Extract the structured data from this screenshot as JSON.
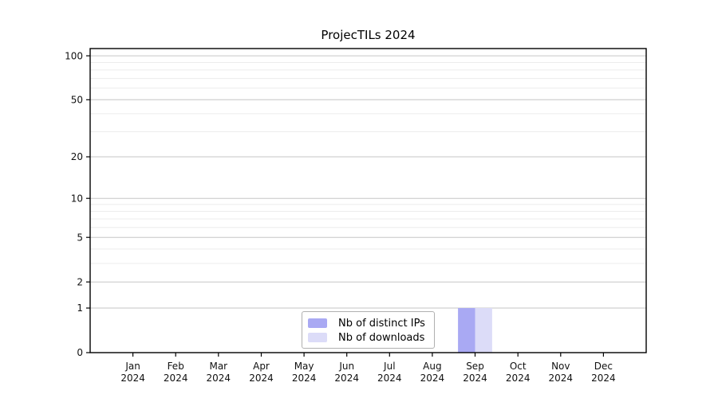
{
  "page": {
    "background": "#ffffff"
  },
  "chart_data": {
    "type": "bar",
    "title": "ProjecTILs 2024",
    "categories": [
      "Jan",
      "Feb",
      "Mar",
      "Apr",
      "May",
      "Jun",
      "Jul",
      "Aug",
      "Sep",
      "Oct",
      "Nov",
      "Dec"
    ],
    "year_label": "2024",
    "series": [
      {
        "name": "Nb of distinct IPs",
        "color": "#a9a9f3",
        "values": [
          0,
          0,
          0,
          0,
          0,
          0,
          0,
          0,
          1,
          0,
          0,
          0
        ]
      },
      {
        "name": "Nb of downloads",
        "color": "#dcdcf8",
        "values": [
          0,
          0,
          0,
          0,
          0,
          0,
          0,
          0,
          1,
          0,
          0,
          0
        ]
      }
    ],
    "y_scale": "log1p",
    "y_ticks": [
      0,
      1,
      2,
      5,
      10,
      20,
      50,
      100
    ],
    "y_minor_ticks": [
      3,
      4,
      6,
      7,
      8,
      9,
      30,
      40,
      60,
      70,
      80,
      90
    ],
    "ylim": [
      0,
      112
    ],
    "xlim": [
      -1,
      12
    ],
    "bar_width": 0.4,
    "grid": "both",
    "legend_position": "lower center",
    "colors": {
      "axis": "#000000",
      "major_grid": "#c6c6c6",
      "minor_grid": "#ececec",
      "text": "#111111",
      "legend_border": "#b0b0b0"
    }
  }
}
